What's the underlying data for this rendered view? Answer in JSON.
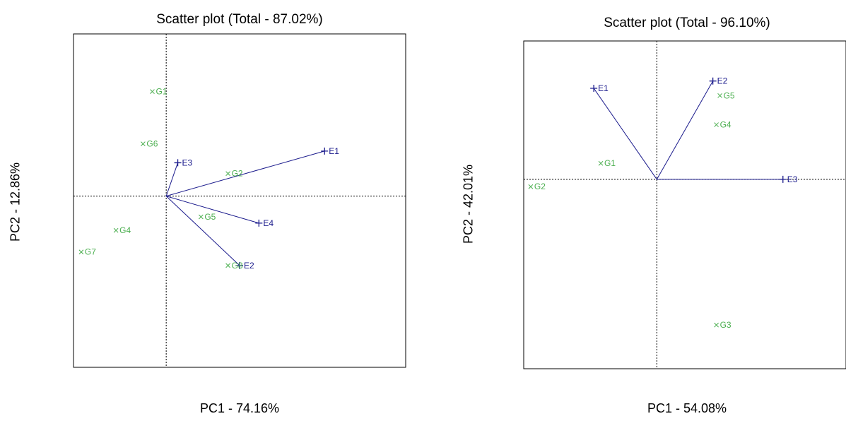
{
  "chart_data": [
    {
      "type": "scatter",
      "title": "Scatter plot (Total - 87.02%)",
      "xlabel": "PC1 - 74.16%",
      "ylabel": "PC2 - 12.86%",
      "xlim": [
        -1.2,
        3.1
      ],
      "ylim": [
        -1.9,
        1.8
      ],
      "grid": false,
      "origin_lines": true,
      "colors": {
        "environment": "#1a1a8c",
        "genotype": "#4caf50"
      },
      "environments": [
        {
          "name": "E1",
          "x": 2.05,
          "y": 0.5
        },
        {
          "name": "E2",
          "x": 0.95,
          "y": -0.77
        },
        {
          "name": "E3",
          "x": 0.15,
          "y": 0.37
        },
        {
          "name": "E4",
          "x": 1.2,
          "y": -0.3
        }
      ],
      "genotypes": [
        {
          "name": "G1",
          "x": -0.18,
          "y": 1.16
        },
        {
          "name": "G2",
          "x": 0.8,
          "y": 0.25
        },
        {
          "name": "G4",
          "x": -0.65,
          "y": -0.38
        },
        {
          "name": "G5",
          "x": 0.45,
          "y": -0.23
        },
        {
          "name": "G6",
          "x": -0.3,
          "y": 0.58
        },
        {
          "name": "G7",
          "x": -1.1,
          "y": -0.62
        },
        {
          "name": "G8",
          "x": 0.8,
          "y": -0.77
        }
      ]
    },
    {
      "type": "scatter",
      "title": "Scatter plot (Total - 96.10%)",
      "xlabel": "PC1 - 54.08%",
      "ylabel": "PC2 - 42.01%",
      "xlim": [
        -1.9,
        2.7
      ],
      "ylim": [
        -2.6,
        1.9
      ],
      "grid": false,
      "origin_lines": true,
      "colors": {
        "environment": "#1a1a8c",
        "genotype": "#4caf50"
      },
      "environments": [
        {
          "name": "E1",
          "x": -0.9,
          "y": 1.25
        },
        {
          "name": "E2",
          "x": 0.8,
          "y": 1.35
        },
        {
          "name": "E3",
          "x": 1.8,
          "y": 0.0
        }
      ],
      "genotypes": [
        {
          "name": "G1",
          "x": -0.8,
          "y": 0.22
        },
        {
          "name": "G2",
          "x": -1.8,
          "y": -0.1
        },
        {
          "name": "G3",
          "x": 0.85,
          "y": -2.0
        },
        {
          "name": "G4",
          "x": 0.85,
          "y": 0.75
        },
        {
          "name": "G5",
          "x": 0.9,
          "y": 1.15
        }
      ]
    }
  ]
}
